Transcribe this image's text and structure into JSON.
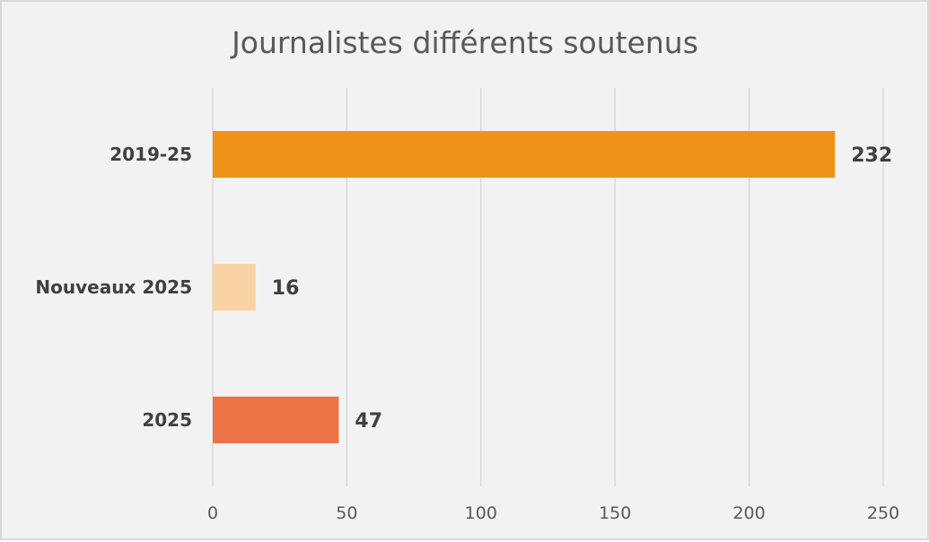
{
  "chart_data": {
    "type": "bar",
    "orientation": "horizontal",
    "title": "Journalistes différents soutenus",
    "categories": [
      "2019-25",
      "Nouveaux 2025",
      "2025"
    ],
    "values": [
      232,
      16,
      47
    ],
    "colors": [
      "#ee9318",
      "#f8d3a4",
      "#ec7346"
    ],
    "data_labels": [
      "232",
      "16",
      "47"
    ],
    "xlim": [
      0,
      250
    ],
    "x_ticks": [
      0,
      50,
      100,
      150,
      200,
      250
    ],
    "grid": "vertical",
    "legend": "none",
    "background": "#f2f2f2",
    "gridline_color": "#d9d9d9"
  }
}
